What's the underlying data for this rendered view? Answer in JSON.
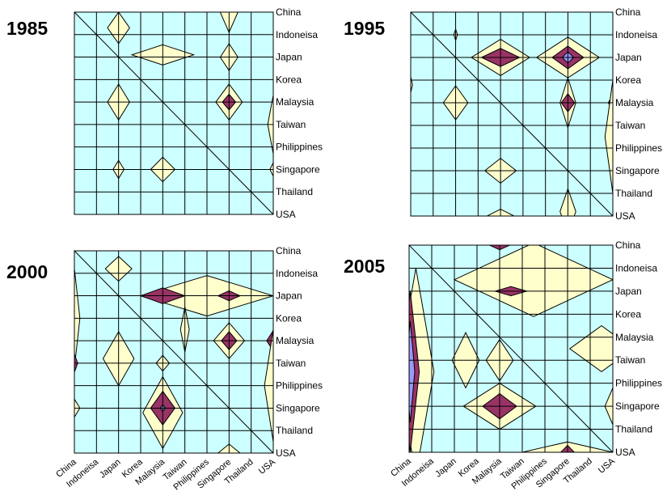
{
  "colors": {
    "background": "#ccffff",
    "low": "#ffffcc",
    "mid": "#993366",
    "high": "#9999ff"
  },
  "chart_data": [
    {
      "type": "heatmap",
      "title": "1985",
      "row_labels": [
        "China",
        "Indoneisa",
        "Japan",
        "Korea",
        "Malaysia",
        "Taiwan",
        "Philippines",
        "Singapore",
        "Thailand",
        "USA"
      ],
      "col_labels": [],
      "levels": [
        "low",
        "mid",
        "high"
      ],
      "features": [
        {
          "row": 0.7,
          "col": 2.0,
          "level": "low",
          "rx": 0.5,
          "ry": 0.7
        },
        {
          "row": 1.9,
          "col": 4.0,
          "level": "low",
          "rx": 1.4,
          "ry": 0.45
        },
        {
          "row": 0.0,
          "col": 7.0,
          "level": "low",
          "rx": 0.4,
          "ry": 0.9
        },
        {
          "row": 2.0,
          "col": 7.0,
          "level": "low",
          "rx": 0.4,
          "ry": 0.6
        },
        {
          "row": 4.0,
          "col": 2.0,
          "level": "low",
          "rx": 0.5,
          "ry": 0.8
        },
        {
          "row": 4.0,
          "col": 7.0,
          "level": "low",
          "rx": 0.6,
          "ry": 0.8
        },
        {
          "row": 4.0,
          "col": 7.0,
          "level": "mid",
          "rx": 0.3,
          "ry": 0.35
        },
        {
          "row": 5.0,
          "col": 9.0,
          "level": "low",
          "rx": 0.25,
          "ry": 1.3
        },
        {
          "row": 7.0,
          "col": 2.0,
          "level": "low",
          "rx": 0.25,
          "ry": 0.4
        },
        {
          "row": 7.0,
          "col": 4.0,
          "level": "low",
          "rx": 0.55,
          "ry": 0.55
        },
        {
          "row": 7.0,
          "col": 9.0,
          "level": "low",
          "rx": 0.15,
          "ry": 0.3
        }
      ]
    },
    {
      "type": "heatmap",
      "title": "1995",
      "row_labels": [
        "China",
        "Indoneisa",
        "Japan",
        "Korea",
        "Malaysia",
        "Taiwan",
        "Philippines",
        "Singapore",
        "Thailand",
        "USA"
      ],
      "col_labels": [],
      "levels": [
        "low",
        "mid",
        "high"
      ],
      "features": [
        {
          "row": 1.0,
          "col": 2.0,
          "level": "low",
          "rx": 0.08,
          "ry": 0.25
        },
        {
          "row": 2.0,
          "col": 4.0,
          "level": "low",
          "rx": 1.3,
          "ry": 0.8
        },
        {
          "row": 2.0,
          "col": 4.0,
          "level": "mid",
          "rx": 0.85,
          "ry": 0.4
        },
        {
          "row": 2.0,
          "col": 7.0,
          "level": "low",
          "rx": 1.4,
          "ry": 0.9
        },
        {
          "row": 2.0,
          "col": 7.0,
          "level": "mid",
          "rx": 0.7,
          "ry": 0.5
        },
        {
          "row": 2.0,
          "col": 7.0,
          "level": "high",
          "rx": 0.25,
          "ry": 0.25
        },
        {
          "row": 3.2,
          "col": 0.0,
          "level": "low",
          "rx": 0.08,
          "ry": 0.35
        },
        {
          "row": 4.0,
          "col": 2.0,
          "level": "low",
          "rx": 0.55,
          "ry": 0.75
        },
        {
          "row": 4.0,
          "col": 7.0,
          "level": "low",
          "rx": 0.35,
          "ry": 1.1
        },
        {
          "row": 4.0,
          "col": 7.0,
          "level": "mid",
          "rx": 0.3,
          "ry": 0.4
        },
        {
          "row": 4.0,
          "col": 9.0,
          "level": "mid",
          "rx": 0.2,
          "ry": 0.35
        },
        {
          "row": 5.5,
          "col": 9.0,
          "level": "low",
          "rx": 0.35,
          "ry": 2.5
        },
        {
          "row": 7.0,
          "col": 4.0,
          "level": "low",
          "rx": 0.7,
          "ry": 0.55
        },
        {
          "row": 9.0,
          "col": 4.0,
          "level": "low",
          "rx": 0.6,
          "ry": 0.3
        },
        {
          "row": 8.8,
          "col": 7.0,
          "level": "low",
          "rx": 0.35,
          "ry": 1.0
        }
      ]
    },
    {
      "type": "heatmap",
      "title": "2000",
      "row_labels": [
        "China",
        "Indoneisa",
        "Japan",
        "Korea",
        "Malaysia",
        "Taiwan",
        "Philippines",
        "Singapore",
        "Thailand",
        "USA"
      ],
      "col_labels": [
        "China",
        "Indoneisa",
        "Japan",
        "Korea",
        "Malaysia",
        "Taiwan",
        "Philippines",
        "Singapore",
        "Thailand",
        "USA"
      ],
      "levels": [
        "low",
        "mid",
        "high"
      ],
      "features": [
        {
          "row": 0.8,
          "col": 2.0,
          "level": "low",
          "rx": 0.6,
          "ry": 0.55
        },
        {
          "row": 2.0,
          "col": 6.0,
          "level": "low",
          "rx": 3.0,
          "ry": 0.9
        },
        {
          "row": 2.0,
          "col": 4.0,
          "level": "mid",
          "rx": 1.0,
          "ry": 0.35
        },
        {
          "row": 2.0,
          "col": 7.0,
          "level": "mid",
          "rx": 0.5,
          "ry": 0.22
        },
        {
          "row": 3.5,
          "col": 5.0,
          "level": "low",
          "rx": 0.2,
          "ry": 1.0
        },
        {
          "row": 3.0,
          "col": 0.0,
          "level": "low",
          "rx": 0.25,
          "ry": 2.2
        },
        {
          "row": 5.0,
          "col": 0.0,
          "level": "mid",
          "rx": 0.15,
          "ry": 0.4
        },
        {
          "row": 4.8,
          "col": 2.0,
          "level": "low",
          "rx": 0.7,
          "ry": 1.2
        },
        {
          "row": 4.0,
          "col": 7.0,
          "level": "low",
          "rx": 0.7,
          "ry": 0.8
        },
        {
          "row": 4.0,
          "col": 7.0,
          "level": "mid",
          "rx": 0.35,
          "ry": 0.4
        },
        {
          "row": 4.0,
          "col": 9.0,
          "level": "mid",
          "rx": 0.3,
          "ry": 0.45
        },
        {
          "row": 6.0,
          "col": 9.0,
          "level": "low",
          "rx": 0.4,
          "ry": 2.5
        },
        {
          "row": 5.0,
          "col": 4.0,
          "level": "low",
          "rx": 0.3,
          "ry": 0.35
        },
        {
          "row": 7.0,
          "col": 0.0,
          "level": "low",
          "rx": 0.25,
          "ry": 0.4
        },
        {
          "row": 7.2,
          "col": 4.0,
          "level": "low",
          "rx": 0.9,
          "ry": 1.6
        },
        {
          "row": 7.0,
          "col": 4.0,
          "level": "mid",
          "rx": 0.55,
          "ry": 0.75
        },
        {
          "row": 7.0,
          "col": 4.0,
          "level": "high",
          "rx": 0.12,
          "ry": 0.15
        },
        {
          "row": 9.0,
          "col": 7.0,
          "level": "low",
          "rx": 0.5,
          "ry": 0.4
        }
      ]
    },
    {
      "type": "heatmap",
      "title": "2005",
      "row_labels": [
        "China",
        "Indoneisa",
        "Japan",
        "Korea",
        "Malaysia",
        "Taiwan",
        "Philippines",
        "Singapore",
        "Thailand",
        "USA"
      ],
      "col_labels": [
        "China",
        "Indoneisa",
        "Japan",
        "Korea",
        "Malaysia",
        "Taiwan",
        "Philippines",
        "Singapore",
        "Thailand",
        "USA"
      ],
      "levels": [
        "low",
        "mid",
        "high"
      ],
      "features": [
        {
          "row": 5.5,
          "col": 0.3,
          "level": "low",
          "rx": 0.8,
          "ry": 4.5
        },
        {
          "row": 5.5,
          "col": 0.05,
          "level": "mid",
          "rx": 0.4,
          "ry": 3.5
        },
        {
          "row": 5.5,
          "col": 0.05,
          "level": "high",
          "rx": 0.2,
          "ry": 2.2
        },
        {
          "row": 1.5,
          "col": 5.5,
          "level": "low",
          "rx": 3.5,
          "ry": 1.6
        },
        {
          "row": 2.0,
          "col": 4.5,
          "level": "mid",
          "rx": 0.7,
          "ry": 0.2
        },
        {
          "row": 0.0,
          "col": 4.0,
          "level": "mid",
          "rx": 0.45,
          "ry": 0.2
        },
        {
          "row": 5.0,
          "col": 2.5,
          "level": "low",
          "rx": 0.6,
          "ry": 1.2
        },
        {
          "row": 5.0,
          "col": 4.0,
          "level": "low",
          "rx": 0.6,
          "ry": 0.9
        },
        {
          "row": 4.5,
          "col": 8.5,
          "level": "low",
          "rx": 1.4,
          "ry": 1.0
        },
        {
          "row": 7.0,
          "col": 4.0,
          "level": "low",
          "rx": 1.6,
          "ry": 1.0
        },
        {
          "row": 7.0,
          "col": 4.0,
          "level": "mid",
          "rx": 0.75,
          "ry": 0.55
        },
        {
          "row": 9.0,
          "col": 7.0,
          "level": "low",
          "rx": 2.0,
          "ry": 0.45
        },
        {
          "row": 9.0,
          "col": 7.0,
          "level": "mid",
          "rx": 0.3,
          "ry": 0.3
        },
        {
          "row": 7.0,
          "col": 9.0,
          "level": "low",
          "rx": 0.35,
          "ry": 0.8
        }
      ]
    }
  ]
}
